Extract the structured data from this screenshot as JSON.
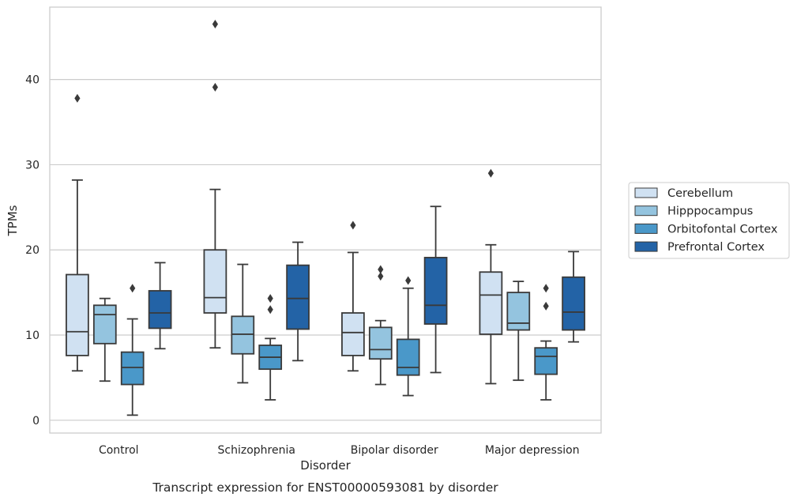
{
  "chart_data": {
    "type": "box",
    "caption": "Transcript expression for ENST00000593081 by disorder",
    "xlabel": "Disorder",
    "ylabel": "TPMs",
    "ylim": [
      -1.5,
      48.5
    ],
    "yticks": [
      0,
      10,
      20,
      30,
      40
    ],
    "grid": "horizontal",
    "legend_position": "right",
    "categories": [
      "Control",
      "Schizophrenia",
      "Bipolar disorder",
      "Major depression"
    ],
    "series": [
      {
        "name": "Cerebellum",
        "color": "#d0e1f2",
        "boxes": [
          {
            "whisker_low": 5.8,
            "q1": 7.6,
            "median": 10.4,
            "q3": 17.1,
            "whisker_high": 28.2,
            "outliers": [
              37.8
            ]
          },
          {
            "whisker_low": 8.5,
            "q1": 12.6,
            "median": 14.4,
            "q3": 20.0,
            "whisker_high": 27.1,
            "outliers": [
              39.1,
              46.5
            ]
          },
          {
            "whisker_low": 5.8,
            "q1": 7.6,
            "median": 10.3,
            "q3": 12.6,
            "whisker_high": 19.7,
            "outliers": [
              22.9
            ]
          },
          {
            "whisker_low": 4.3,
            "q1": 10.1,
            "median": 14.7,
            "q3": 17.4,
            "whisker_high": 20.6,
            "outliers": [
              29.0
            ]
          }
        ]
      },
      {
        "name": "Hipppocampus",
        "color": "#94c4df",
        "boxes": [
          {
            "whisker_low": 4.6,
            "q1": 9.0,
            "median": 12.4,
            "q3": 13.5,
            "whisker_high": 14.3,
            "outliers": []
          },
          {
            "whisker_low": 4.4,
            "q1": 7.8,
            "median": 10.1,
            "q3": 12.2,
            "whisker_high": 18.3,
            "outliers": []
          },
          {
            "whisker_low": 4.2,
            "q1": 7.2,
            "median": 8.3,
            "q3": 10.9,
            "whisker_high": 11.7,
            "outliers": [
              16.9,
              17.7
            ]
          },
          {
            "whisker_low": 4.7,
            "q1": 10.6,
            "median": 11.4,
            "q3": 15.0,
            "whisker_high": 16.3,
            "outliers": []
          }
        ]
      },
      {
        "name": "Orbitofontal Cortex",
        "color": "#4a98c9",
        "boxes": [
          {
            "whisker_low": 0.6,
            "q1": 4.2,
            "median": 6.2,
            "q3": 8.0,
            "whisker_high": 11.9,
            "outliers": [
              15.5
            ]
          },
          {
            "whisker_low": 2.4,
            "q1": 6.0,
            "median": 7.4,
            "q3": 8.8,
            "whisker_high": 9.6,
            "outliers": [
              13.0,
              14.3
            ]
          },
          {
            "whisker_low": 2.9,
            "q1": 5.3,
            "median": 6.2,
            "q3": 9.5,
            "whisker_high": 15.5,
            "outliers": [
              16.4
            ]
          },
          {
            "whisker_low": 2.4,
            "q1": 5.4,
            "median": 7.5,
            "q3": 8.5,
            "whisker_high": 9.3,
            "outliers": [
              13.4,
              15.5
            ]
          }
        ]
      },
      {
        "name": "Prefrontal Cortex",
        "color": "#2363a6",
        "boxes": [
          {
            "whisker_low": 8.4,
            "q1": 10.8,
            "median": 12.6,
            "q3": 15.2,
            "whisker_high": 18.5,
            "outliers": []
          },
          {
            "whisker_low": 7.0,
            "q1": 10.7,
            "median": 14.3,
            "q3": 18.2,
            "whisker_high": 20.9,
            "outliers": []
          },
          {
            "whisker_low": 5.6,
            "q1": 11.3,
            "median": 13.5,
            "q3": 19.1,
            "whisker_high": 25.1,
            "outliers": []
          },
          {
            "whisker_low": 9.2,
            "q1": 10.6,
            "median": 12.7,
            "q3": 16.8,
            "whisker_high": 19.8,
            "outliers": []
          }
        ]
      }
    ]
  }
}
